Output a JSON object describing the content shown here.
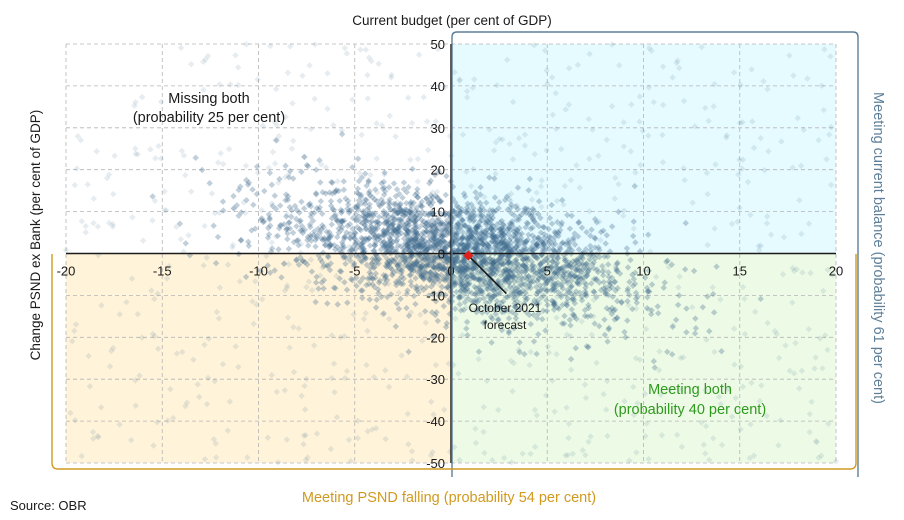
{
  "source": "Source: OBR",
  "chart_data": {
    "type": "scatter",
    "title": "",
    "xlabel": "Current budget (per cent of GDP)",
    "ylabel": "Change PSND ex Bank (per cent of GDP)",
    "xlim": [
      -20,
      20
    ],
    "ylim": [
      -50,
      50
    ],
    "x_ticks": [
      -20,
      -15,
      -10,
      -5,
      0,
      5,
      10,
      15,
      20
    ],
    "y_ticks": [
      50,
      40,
      30,
      20,
      10,
      0,
      -10,
      -20,
      -30,
      -40,
      -50
    ],
    "x_tick_labels": [
      "-20",
      "-15",
      "-10",
      "-5",
      "0",
      "5",
      "10",
      "15",
      "20"
    ],
    "y_tick_labels": [
      "50",
      "40",
      "30",
      "20",
      "10",
      "0",
      "-10",
      "-20",
      "-30",
      "-40",
      "-50"
    ],
    "grid": true,
    "distribution": {
      "center": [
        0.5,
        0
      ],
      "spread": [
        4,
        12
      ],
      "negative_correlation": true,
      "color": "#3d6a8c"
    },
    "quadrants": [
      {
        "id": "missing-both",
        "region": "top-left",
        "label_line1": "Missing both",
        "label_line2": "(probability 25  per cent)",
        "color": "#1a1a1a"
      },
      {
        "id": "current-only",
        "region": "top-right",
        "fill": "#e6fbff"
      },
      {
        "id": "psnd-only",
        "region": "bottom-left",
        "fill": "#fff3d9"
      },
      {
        "id": "meeting-both",
        "region": "bottom-right",
        "label_line1": "Meeting both",
        "label_line2": "(probability 40  per cent)",
        "fill": "#edfbe6",
        "color": "#2e9a1e"
      }
    ],
    "brackets": [
      {
        "id": "current-balance",
        "label": "Meeting current balance  (probability 61  per cent)",
        "color": "#5d7f99"
      },
      {
        "id": "psnd-falling",
        "label": "Meeting PSND falling (probability 54  per cent)",
        "color": "#d19a1f"
      }
    ],
    "forecast": {
      "label_line1": "October 2021",
      "label_line2": "forecast",
      "x": 0.9,
      "y": -0.5,
      "color": "#e0211c"
    }
  }
}
